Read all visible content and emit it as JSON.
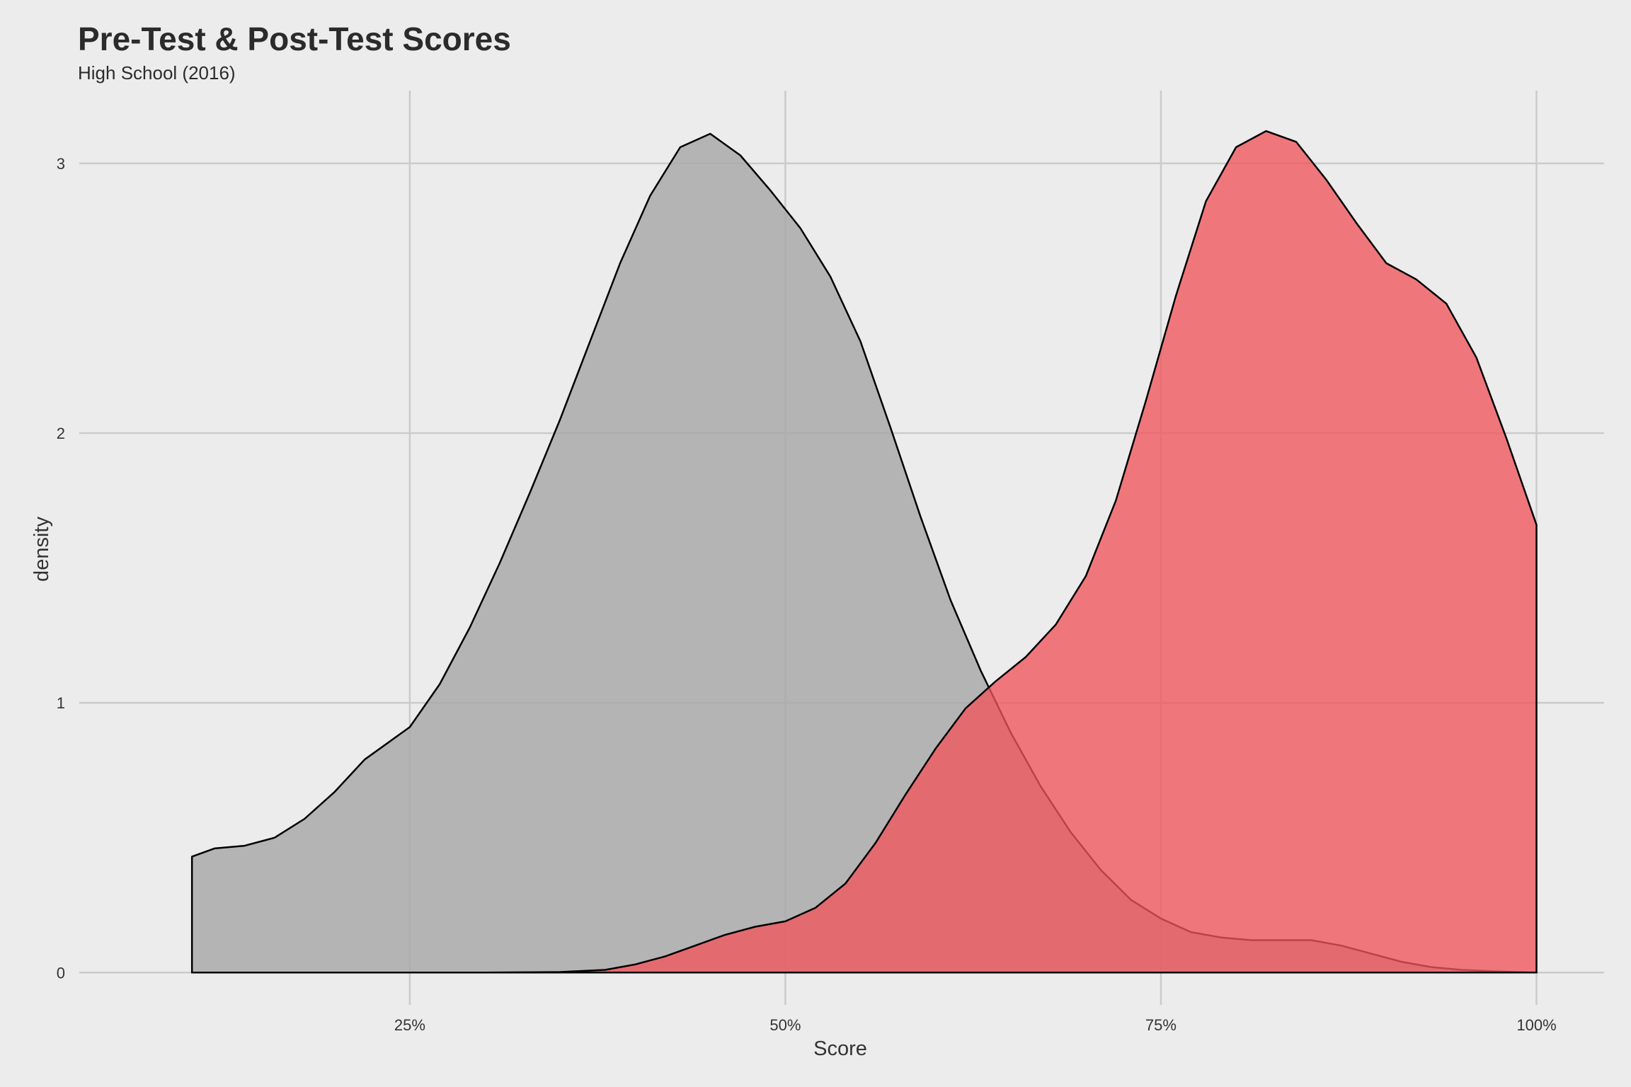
{
  "chart_data": {
    "type": "area",
    "subtype": "density",
    "title": "Pre-Test & Post-Test Scores",
    "subtitle": "High School (2016)",
    "xlabel": "Score",
    "ylabel": "density",
    "xlim": [
      0.03,
      1.045
    ],
    "ylim": [
      -0.12,
      3.27
    ],
    "x_ticks": [
      0.25,
      0.5,
      0.75,
      1.0
    ],
    "x_tick_labels": [
      "25%",
      "50%",
      "75%",
      "100%"
    ],
    "y_ticks": [
      0,
      1,
      2,
      3
    ],
    "y_tick_labels": [
      "0",
      "1",
      "2",
      "3"
    ],
    "grid": true,
    "legend": "none",
    "series": [
      {
        "fill": "#a6a6a6",
        "opacity": 0.8,
        "points": [
          [
            0.105,
            0.43
          ],
          [
            0.12,
            0.46
          ],
          [
            0.14,
            0.47
          ],
          [
            0.16,
            0.5
          ],
          [
            0.18,
            0.57
          ],
          [
            0.2,
            0.67
          ],
          [
            0.22,
            0.79
          ],
          [
            0.25,
            0.91
          ],
          [
            0.27,
            1.07
          ],
          [
            0.29,
            1.28
          ],
          [
            0.31,
            1.52
          ],
          [
            0.33,
            1.78
          ],
          [
            0.35,
            2.05
          ],
          [
            0.37,
            2.34
          ],
          [
            0.39,
            2.63
          ],
          [
            0.41,
            2.88
          ],
          [
            0.43,
            3.06
          ],
          [
            0.45,
            3.11
          ],
          [
            0.47,
            3.03
          ],
          [
            0.49,
            2.9
          ],
          [
            0.51,
            2.76
          ],
          [
            0.53,
            2.58
          ],
          [
            0.55,
            2.34
          ],
          [
            0.57,
            2.02
          ],
          [
            0.59,
            1.69
          ],
          [
            0.61,
            1.38
          ],
          [
            0.63,
            1.12
          ],
          [
            0.65,
            0.89
          ],
          [
            0.67,
            0.69
          ],
          [
            0.69,
            0.52
          ],
          [
            0.71,
            0.38
          ],
          [
            0.73,
            0.27
          ],
          [
            0.75,
            0.2
          ],
          [
            0.77,
            0.15
          ],
          [
            0.79,
            0.13
          ],
          [
            0.81,
            0.12
          ],
          [
            0.83,
            0.12
          ],
          [
            0.85,
            0.12
          ],
          [
            0.87,
            0.1
          ],
          [
            0.89,
            0.07
          ],
          [
            0.91,
            0.04
          ],
          [
            0.93,
            0.02
          ],
          [
            0.95,
            0.01
          ],
          [
            0.97,
            0.005
          ],
          [
            1.0,
            0.0
          ]
        ]
      },
      {
        "fill": "#f0565c",
        "opacity": 0.78,
        "points": [
          [
            0.105,
            0.0
          ],
          [
            0.2,
            0.0
          ],
          [
            0.3,
            0.0
          ],
          [
            0.35,
            0.002
          ],
          [
            0.38,
            0.01
          ],
          [
            0.4,
            0.03
          ],
          [
            0.42,
            0.06
          ],
          [
            0.44,
            0.1
          ],
          [
            0.46,
            0.14
          ],
          [
            0.48,
            0.17
          ],
          [
            0.5,
            0.19
          ],
          [
            0.52,
            0.24
          ],
          [
            0.54,
            0.33
          ],
          [
            0.56,
            0.48
          ],
          [
            0.58,
            0.66
          ],
          [
            0.6,
            0.83
          ],
          [
            0.62,
            0.98
          ],
          [
            0.64,
            1.08
          ],
          [
            0.66,
            1.17
          ],
          [
            0.68,
            1.29
          ],
          [
            0.7,
            1.47
          ],
          [
            0.72,
            1.75
          ],
          [
            0.74,
            2.12
          ],
          [
            0.76,
            2.51
          ],
          [
            0.78,
            2.86
          ],
          [
            0.8,
            3.06
          ],
          [
            0.82,
            3.12
          ],
          [
            0.84,
            3.08
          ],
          [
            0.86,
            2.94
          ],
          [
            0.88,
            2.78
          ],
          [
            0.9,
            2.63
          ],
          [
            0.92,
            2.57
          ],
          [
            0.94,
            2.48
          ],
          [
            0.96,
            2.28
          ],
          [
            0.98,
            1.98
          ],
          [
            1.0,
            1.66
          ]
        ]
      }
    ]
  }
}
